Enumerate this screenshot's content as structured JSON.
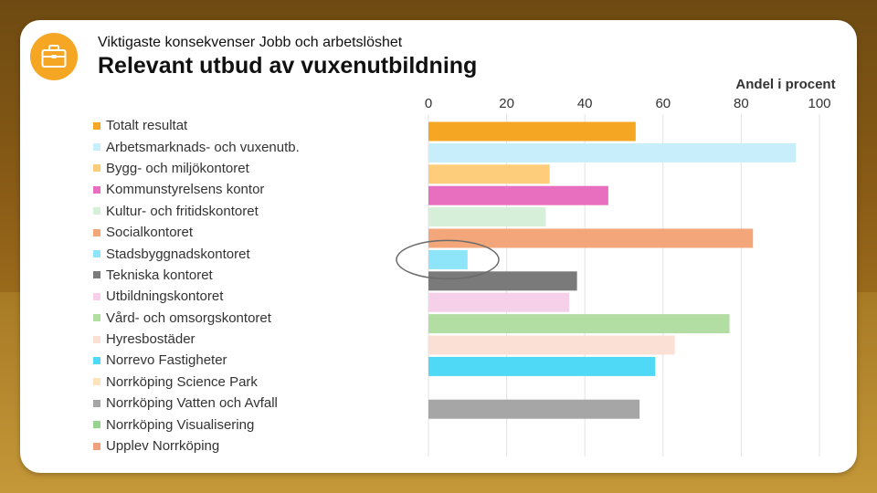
{
  "header": {
    "subtitle": "Viktigaste konsekvenser Jobb och arbetslöshet",
    "title": "Relevant utbud av vuxenutbildning",
    "icon": "briefcase-icon",
    "icon_color": "#f5a623"
  },
  "chart_data": {
    "type": "bar",
    "orientation": "horizontal",
    "title": "Relevant utbud av vuxenutbildning",
    "xlabel": "Andel i procent",
    "ylabel": "",
    "xlim": [
      0,
      100
    ],
    "xticks": [
      "0",
      "20",
      "40",
      "60",
      "80",
      "100"
    ],
    "grid": true,
    "legend_position": "left",
    "categories": [
      "Totalt resultat",
      "Arbetsmarknads- och vuxenutb.",
      "Bygg- och miljökontoret",
      "Kommunstyrelsens kontor",
      "Kultur- och fritidskontoret",
      "Socialkontoret",
      "Stadsbyggnadskontoret",
      "Tekniska kontoret",
      "Utbildningskontoret",
      "Vård- och omsorgskontoret",
      "Hyresbostäder",
      "Norrevo Fastigheter",
      "Norrköping Science Park",
      "Norrköping Vatten och Avfall",
      "Norrköping Visualisering",
      "Upplev Norrköping"
    ],
    "values": [
      53,
      94,
      31,
      46,
      30,
      83,
      10,
      38,
      36,
      77,
      63,
      58,
      null,
      54,
      null,
      null
    ],
    "colors": [
      "#f5a623",
      "#c8eefb",
      "#fdcd7c",
      "#e86fbf",
      "#d6efd9",
      "#f2a67a",
      "#8ee4f8",
      "#7a7a7a",
      "#f6cfe8",
      "#b3dea3",
      "#fbe1d5",
      "#4fd9f7",
      "#fde3bc",
      "#a6a6a6",
      "#96d48f",
      "#f0a07a"
    ],
    "annotation": {
      "type": "ellipse",
      "target": "Stadsbyggnadskontoret"
    }
  }
}
